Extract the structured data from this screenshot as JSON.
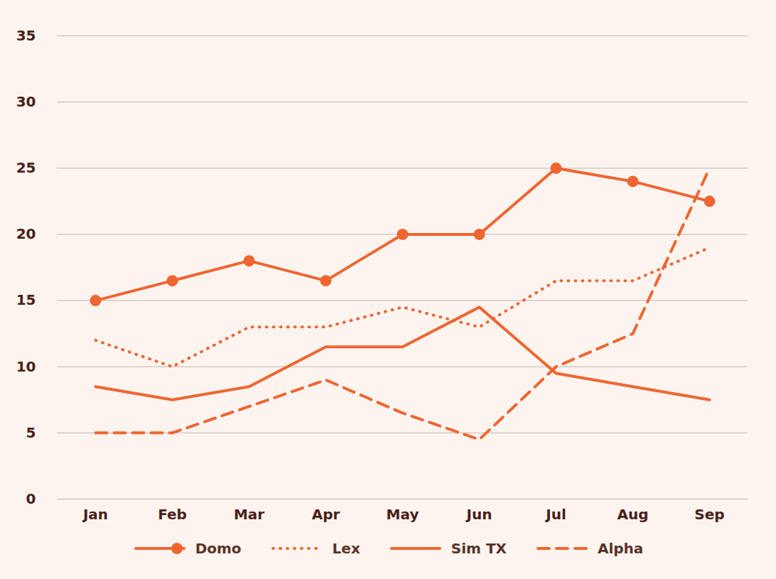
{
  "chart_data": {
    "type": "line",
    "categories": [
      "Jan",
      "Feb",
      "Mar",
      "Apr",
      "May",
      "Jun",
      "Jul",
      "Aug",
      "Sep"
    ],
    "ylim": [
      0,
      35
    ],
    "yticks": [
      0,
      5,
      10,
      15,
      20,
      25,
      30,
      35
    ],
    "grid": true,
    "legend": "bottom",
    "series": [
      {
        "name": "Domo",
        "color": "#ef6530",
        "line_style": "solid",
        "marker": "circle",
        "values": [
          15,
          16.5,
          18,
          16.5,
          20,
          20,
          25,
          24,
          22.5
        ]
      },
      {
        "name": "Lex",
        "color": "#ef6530",
        "line_style": "dotted",
        "values": [
          12,
          10,
          13,
          13,
          14.5,
          13,
          16.5,
          16.5,
          19
        ]
      },
      {
        "name": "Sim TX",
        "color": "#ef6530",
        "line_style": "solid",
        "values": [
          8.5,
          7.5,
          8.5,
          11.5,
          11.5,
          14.5,
          9.5,
          8.5,
          7.5
        ]
      },
      {
        "name": "Alpha",
        "color": "#ef6530",
        "line_style": "dashed",
        "values": [
          5,
          5,
          7,
          9,
          6.5,
          4.5,
          10,
          12.5,
          25
        ]
      }
    ]
  }
}
